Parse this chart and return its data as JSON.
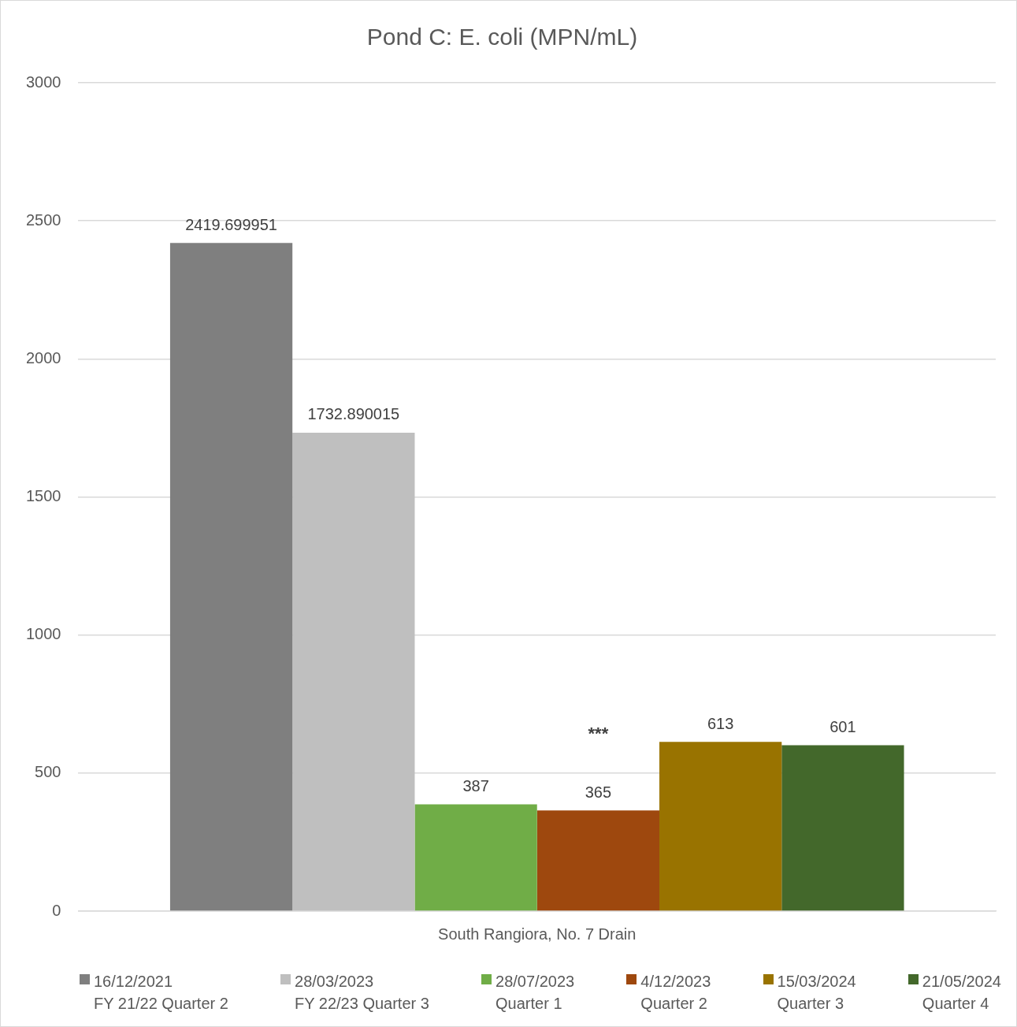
{
  "chart_data": {
    "type": "bar",
    "title": "Pond C: E. coli (MPN/mL)",
    "categories": [
      "South Rangiora, No. 7 Drain"
    ],
    "series": [
      {
        "name": "16/12/2021\nFY 21/22 Quarter 2",
        "color": "#7f7f7f",
        "values": [
          2419.699951
        ]
      },
      {
        "name": "28/03/2023\nFY 22/23 Quarter 3",
        "color": "#bfbfbf",
        "values": [
          1732.890015
        ]
      },
      {
        "name": "28/07/2023\nQuarter 1",
        "color": "#70ad47",
        "values": [
          387
        ]
      },
      {
        "name": "4/12/2023\nQuarter 2",
        "color": "#9e480e",
        "values": [
          365
        ]
      },
      {
        "name": "15/03/2024\nQuarter 3",
        "color": "#997300",
        "values": [
          613
        ]
      },
      {
        "name": "21/05/2024\nQuarter 4",
        "color": "#43682b",
        "values": [
          601
        ]
      }
    ],
    "ylim": [
      0,
      3000
    ],
    "yticks": [
      0,
      500,
      1000,
      1500,
      2000,
      2500,
      3000
    ],
    "grid": "y",
    "legend": "bottom",
    "data_labels": true,
    "annotations": [
      "***"
    ]
  }
}
